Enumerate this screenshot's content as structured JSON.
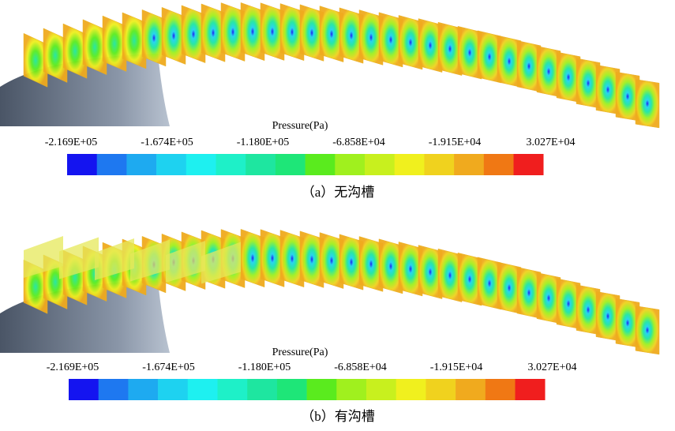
{
  "colormap": [
    "#1414f0",
    "#1e78f0",
    "#1eaaf0",
    "#1ed2f0",
    "#1ef0f0",
    "#1ef0c8",
    "#1ee6a0",
    "#1ee678",
    "#5aeb1e",
    "#a0f01e",
    "#c8f01e",
    "#f0f01e",
    "#f0d21e",
    "#f0aa1e",
    "#f07814",
    "#f01e1e"
  ],
  "panels": [
    {
      "legend": {
        "title": "Pressure(Pa)",
        "ticks": [
          "-2.169E+05",
          "-1.674E+05",
          "-1.180E+05",
          "-6.858E+04",
          "-1.915E+04",
          "3.027E+04"
        ]
      },
      "caption": "（a）无沟槽"
    },
    {
      "legend": {
        "title": "Pressure(Pa)",
        "ticks": [
          "-2.169E+05",
          "-1.674E+05",
          "-1.180E+05",
          "-6.858E+04",
          "-1.915E+04",
          "3.027E+04"
        ]
      },
      "caption": "（b）有沟槽"
    }
  ]
}
